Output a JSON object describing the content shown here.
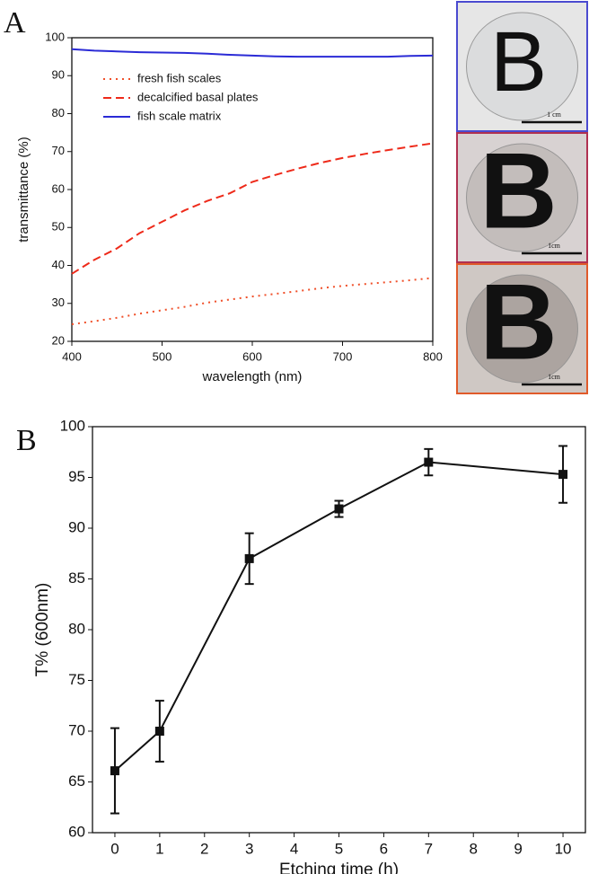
{
  "chart_data": [
    {
      "type": "line",
      "label": "A",
      "xlabel": "wavelength (nm)",
      "ylabel": "transmittance (%)",
      "x": [
        400,
        425,
        450,
        475,
        500,
        525,
        550,
        575,
        600,
        625,
        650,
        675,
        700,
        725,
        750,
        775,
        800
      ],
      "xlim": [
        400,
        800
      ],
      "xticks": [
        400,
        500,
        600,
        700,
        800
      ],
      "ylim": [
        20,
        100
      ],
      "yticks": [
        20,
        30,
        40,
        50,
        60,
        70,
        80,
        90,
        100
      ],
      "legend": "upper left",
      "series": [
        {
          "name": "fresh fish scales",
          "color": "#f0502a",
          "dash": "dotted",
          "values": [
            24.5,
            25.3,
            26.2,
            27.3,
            28.2,
            29.1,
            30.2,
            31.0,
            31.8,
            32.5,
            33.2,
            34.0,
            34.6,
            35.1,
            35.6,
            36.1,
            36.7
          ]
        },
        {
          "name": "decalcified basal plates",
          "color": "#ee2a1a",
          "dash": "dashed",
          "values": [
            37.8,
            41.5,
            44.5,
            48.5,
            51.5,
            54.5,
            57.0,
            59.0,
            62.0,
            63.8,
            65.5,
            67.0,
            68.3,
            69.4,
            70.4,
            71.3,
            72.2
          ]
        },
        {
          "name": "fish scale matrix",
          "color": "#2b2bd6",
          "dash": "solid",
          "values": [
            97.0,
            96.6,
            96.4,
            96.2,
            96.1,
            96.0,
            95.8,
            95.5,
            95.3,
            95.1,
            95.0,
            95.0,
            95.0,
            95.0,
            95.0,
            95.2,
            95.3
          ]
        }
      ]
    },
    {
      "type": "line",
      "label": "B",
      "xlabel": "Etching time (h)",
      "ylabel": "T% (600nm)",
      "x": [
        0,
        1,
        3,
        5,
        7,
        10
      ],
      "xlim": [
        -0.5,
        10.5
      ],
      "xticks": [
        0,
        1,
        2,
        3,
        4,
        5,
        6,
        7,
        8,
        9,
        10
      ],
      "ylim": [
        60,
        100
      ],
      "yticks": [
        60,
        65,
        70,
        75,
        80,
        85,
        90,
        95,
        100
      ],
      "series": [
        {
          "color": "#111111",
          "dash": "solid",
          "marker": "square",
          "values": [
            66.1,
            70.0,
            87.0,
            91.9,
            96.5,
            95.3
          ],
          "errors": [
            4.2,
            3.0,
            2.5,
            0.8,
            1.3,
            2.8
          ]
        }
      ]
    }
  ],
  "photos": [
    {
      "letter": "B",
      "scale": "1 cm",
      "border": "#4a4ad0"
    },
    {
      "letter": "B",
      "scale": "1cm",
      "border": "#b03050"
    },
    {
      "letter": "B",
      "scale": "1cm",
      "border": "#e05a2a"
    }
  ]
}
